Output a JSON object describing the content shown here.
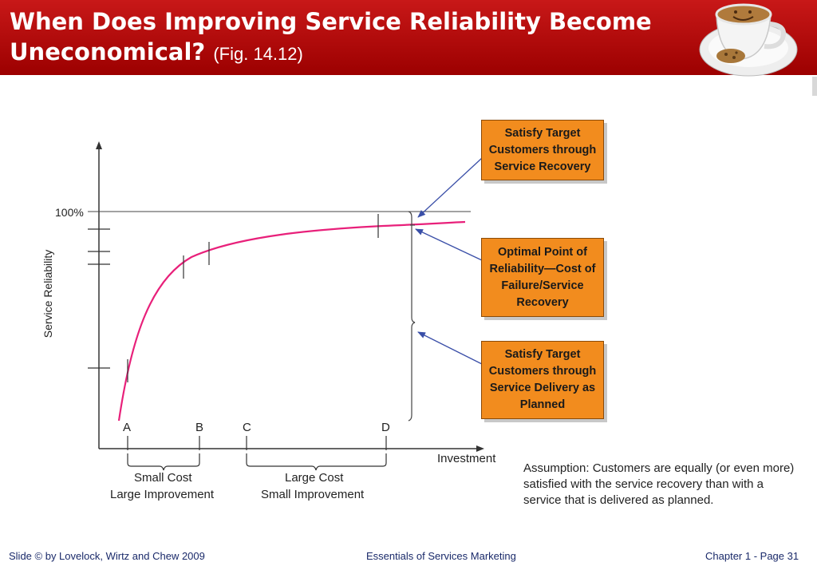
{
  "header": {
    "title_line1": "When Does Improving Service Reliability Become",
    "title_line2": "Uneconomical?",
    "fig_ref": "(Fig. 14.12)"
  },
  "diagram": {
    "y_axis_label": "Service Reliability",
    "y_100_label": "100%",
    "x_axis_label": "Investment",
    "points": [
      "A",
      "B",
      "C",
      "D"
    ],
    "bracket_left_line1": "Small Cost",
    "bracket_left_line2": "Large Improvement",
    "bracket_right_line1": "Large Cost",
    "bracket_right_line2": "Small Improvement",
    "boxes": [
      {
        "lines": [
          "Satisfy Target",
          "Customers through",
          "Service Recovery"
        ]
      },
      {
        "lines": [
          "Optimal Point of",
          "Reliability—Cost of",
          "Failure/Service",
          "Recovery"
        ]
      },
      {
        "lines": [
          "Satisfy Target",
          "Customers through",
          "Service Delivery as",
          "Planned"
        ]
      }
    ],
    "assumption": "Assumption: Customers are equally (or even more) satisfied with the service recovery than with a service that is delivered as planned."
  },
  "colors": {
    "header_red": "#b00000",
    "curve_pink": "#e8207a",
    "box_orange": "#f28c1e",
    "arrow_blue": "#3a4fa8"
  },
  "footer": {
    "left": "Slide © by Lovelock, Wirtz and Chew 2009",
    "center": "Essentials of Services Marketing",
    "right": "Chapter 1 - Page 31"
  }
}
